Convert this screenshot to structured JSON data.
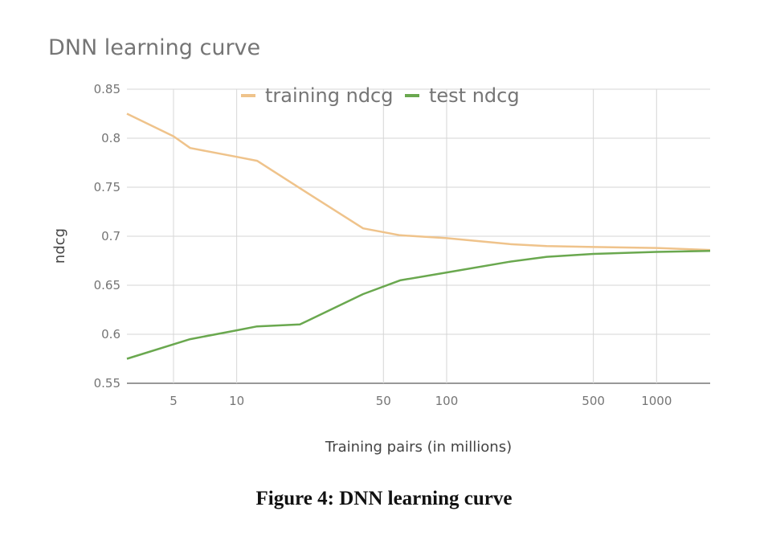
{
  "figure_caption": "Figure 4: DNN learning curve",
  "colors": {
    "training": "#efc38b",
    "test": "#6aa84f",
    "grid": "#d6d6d6",
    "text": "#757575"
  },
  "chart_data": {
    "type": "line",
    "title": "DNN learning curve",
    "xlabel": "Training pairs (in millions)",
    "ylabel": "ndcg",
    "x_scale": "log",
    "xlim": [
      3,
      1800
    ],
    "ylim": [
      0.55,
      0.85
    ],
    "x_ticks": [
      5,
      10,
      50,
      100,
      500,
      1000
    ],
    "y_ticks": [
      0.55,
      0.6,
      0.65,
      0.7,
      0.75,
      0.8,
      0.85
    ],
    "legend_position": "top",
    "grid": true,
    "series": [
      {
        "name": "training ndcg",
        "color": "#efc38b",
        "x": [
          3,
          5,
          6,
          10,
          12.5,
          20,
          40,
          60,
          100,
          200,
          300,
          500,
          1000,
          1800
        ],
        "y": [
          0.825,
          0.802,
          0.79,
          0.781,
          0.777,
          0.749,
          0.708,
          0.701,
          0.698,
          0.692,
          0.69,
          0.689,
          0.688,
          0.686
        ]
      },
      {
        "name": "test ndcg",
        "color": "#6aa84f",
        "x": [
          3,
          6,
          10,
          12.5,
          20,
          40,
          60,
          100,
          200,
          300,
          500,
          1000,
          1800
        ],
        "y": [
          0.575,
          0.595,
          0.604,
          0.608,
          0.61,
          0.641,
          0.655,
          0.663,
          0.674,
          0.679,
          0.682,
          0.684,
          0.685
        ]
      }
    ]
  }
}
